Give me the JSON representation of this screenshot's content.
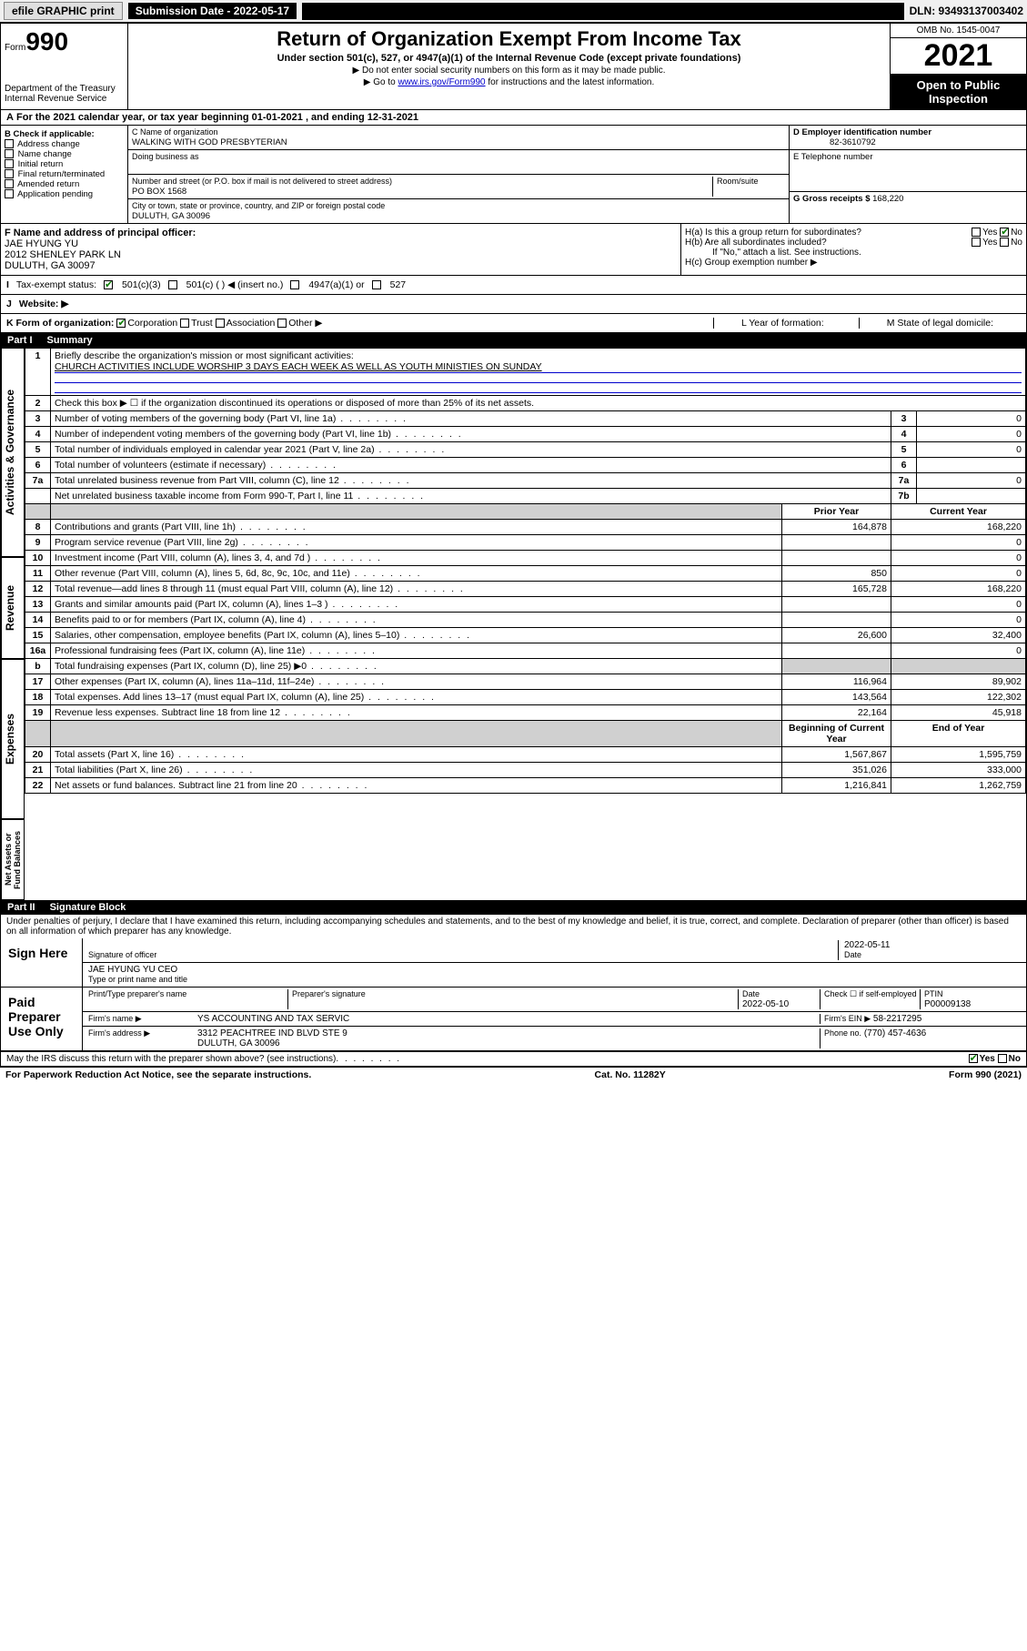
{
  "topbar": {
    "efile": "efile GRAPHIC print",
    "subdate_label": "Submission Date - 2022-05-17",
    "dln": "DLN: 93493137003402"
  },
  "header": {
    "form_label": "Form",
    "form_no": "990",
    "dept": "Department of the Treasury",
    "irs": "Internal Revenue Service",
    "title": "Return of Organization Exempt From Income Tax",
    "subtitle": "Under section 501(c), 527, or 4947(a)(1) of the Internal Revenue Code (except private foundations)",
    "note1": "▶ Do not enter social security numbers on this form as it may be made public.",
    "note2_pre": "▶ Go to ",
    "note2_link": "www.irs.gov/Form990",
    "note2_post": " for instructions and the latest information.",
    "omb": "OMB No. 1545-0047",
    "year": "2021",
    "open": "Open to Public Inspection"
  },
  "A": {
    "text": "For the 2021 calendar year, or tax year beginning 01-01-2021  , and ending 12-31-2021"
  },
  "B": {
    "label": "B Check if applicable:",
    "items": [
      "Address change",
      "Name change",
      "Initial return",
      "Final return/terminated",
      "Amended return",
      "Application pending"
    ]
  },
  "C": {
    "name_label": "C Name of organization",
    "name": "WALKING WITH GOD PRESBYTERIAN",
    "dba_label": "Doing business as",
    "addr_label": "Number and street (or P.O. box if mail is not delivered to street address)",
    "room_label": "Room/suite",
    "addr": "PO BOX 1568",
    "city_label": "City or town, state or province, country, and ZIP or foreign postal code",
    "city": "DULUTH, GA  30096"
  },
  "D": {
    "label": "D Employer identification number",
    "value": "82-3610792"
  },
  "E": {
    "label": "E Telephone number",
    "value": ""
  },
  "G": {
    "label": "G Gross receipts $",
    "value": "168,220"
  },
  "F": {
    "label": "F  Name and address of principal officer:",
    "name": "JAE HYUNG YU",
    "addr1": "2012 SHENLEY PARK LN",
    "addr2": "DULUTH, GA  30097"
  },
  "H": {
    "a": "H(a)  Is this a group return for subordinates?",
    "a_yes": "Yes",
    "a_no": "No",
    "b": "H(b)  Are all subordinates included?",
    "b_yes": "Yes",
    "b_no": "No",
    "b_note": "If \"No,\" attach a list. See instructions.",
    "c": "H(c)  Group exemption number ▶"
  },
  "I": {
    "label": "Tax-exempt status:",
    "opts": [
      "501(c)(3)",
      "501(c) (  ) ◀ (insert no.)",
      "4947(a)(1) or",
      "527"
    ]
  },
  "J": {
    "label": "Website: ▶"
  },
  "K": {
    "label": "K Form of organization:",
    "opts": [
      "Corporation",
      "Trust",
      "Association",
      "Other ▶"
    ]
  },
  "L": {
    "label": "L Year of formation:"
  },
  "M": {
    "label": "M State of legal domicile:"
  },
  "parts": {
    "p1": "Part I",
    "p1t": "Summary",
    "p2": "Part II",
    "p2t": "Signature Block"
  },
  "summary": {
    "q1_label": "Briefly describe the organization's mission or most significant activities:",
    "q1_text": "CHURCH ACTIVITIES INCLUDE WORSHIP 3 DAYS EACH WEEK AS WELL AS YOUTH MINISTIES ON SUNDAY",
    "q2": "Check this box ▶ ☐  if the organization discontinued its operations or disposed of more than 25% of its net assets.",
    "sections": {
      "gov": "Activities & Governance",
      "rev": "Revenue",
      "exp": "Expenses",
      "net": "Net Assets or Fund Balances"
    },
    "col_prior": "Prior Year",
    "col_current": "Current Year",
    "col_boy": "Beginning of Current Year",
    "col_eoy": "End of Year",
    "rows_gov": [
      {
        "n": "3",
        "t": "Number of voting members of the governing body (Part VI, line 1a)",
        "c": "3",
        "v": "0"
      },
      {
        "n": "4",
        "t": "Number of independent voting members of the governing body (Part VI, line 1b)",
        "c": "4",
        "v": "0"
      },
      {
        "n": "5",
        "t": "Total number of individuals employed in calendar year 2021 (Part V, line 2a)",
        "c": "5",
        "v": "0"
      },
      {
        "n": "6",
        "t": "Total number of volunteers (estimate if necessary)",
        "c": "6",
        "v": ""
      },
      {
        "n": "7a",
        "t": "Total unrelated business revenue from Part VIII, column (C), line 12",
        "c": "7a",
        "v": "0"
      },
      {
        "n": "",
        "t": "Net unrelated business taxable income from Form 990-T, Part I, line 11",
        "c": "7b",
        "v": ""
      }
    ],
    "rows_rev": [
      {
        "n": "8",
        "t": "Contributions and grants (Part VIII, line 1h)",
        "p": "164,878",
        "c": "168,220"
      },
      {
        "n": "9",
        "t": "Program service revenue (Part VIII, line 2g)",
        "p": "",
        "c": "0"
      },
      {
        "n": "10",
        "t": "Investment income (Part VIII, column (A), lines 3, 4, and 7d )",
        "p": "",
        "c": "0"
      },
      {
        "n": "11",
        "t": "Other revenue (Part VIII, column (A), lines 5, 6d, 8c, 9c, 10c, and 11e)",
        "p": "850",
        "c": "0"
      },
      {
        "n": "12",
        "t": "Total revenue—add lines 8 through 11 (must equal Part VIII, column (A), line 12)",
        "p": "165,728",
        "c": "168,220"
      }
    ],
    "rows_exp": [
      {
        "n": "13",
        "t": "Grants and similar amounts paid (Part IX, column (A), lines 1–3 )",
        "p": "",
        "c": "0"
      },
      {
        "n": "14",
        "t": "Benefits paid to or for members (Part IX, column (A), line 4)",
        "p": "",
        "c": "0"
      },
      {
        "n": "15",
        "t": "Salaries, other compensation, employee benefits (Part IX, column (A), lines 5–10)",
        "p": "26,600",
        "c": "32,400"
      },
      {
        "n": "16a",
        "t": "Professional fundraising fees (Part IX, column (A), line 11e)",
        "p": "",
        "c": "0"
      },
      {
        "n": "b",
        "t": "Total fundraising expenses (Part IX, column (D), line 25) ▶0",
        "p": "shade",
        "c": "shade"
      },
      {
        "n": "17",
        "t": "Other expenses (Part IX, column (A), lines 11a–11d, 11f–24e)",
        "p": "116,964",
        "c": "89,902"
      },
      {
        "n": "18",
        "t": "Total expenses. Add lines 13–17 (must equal Part IX, column (A), line 25)",
        "p": "143,564",
        "c": "122,302"
      },
      {
        "n": "19",
        "t": "Revenue less expenses. Subtract line 18 from line 12",
        "p": "22,164",
        "c": "45,918"
      }
    ],
    "rows_net": [
      {
        "n": "20",
        "t": "Total assets (Part X, line 16)",
        "p": "1,567,867",
        "c": "1,595,759"
      },
      {
        "n": "21",
        "t": "Total liabilities (Part X, line 26)",
        "p": "351,026",
        "c": "333,000"
      },
      {
        "n": "22",
        "t": "Net assets or fund balances. Subtract line 21 from line 20",
        "p": "1,216,841",
        "c": "1,262,759"
      }
    ]
  },
  "sig": {
    "penalty": "Under penalties of perjury, I declare that I have examined this return, including accompanying schedules and statements, and to the best of my knowledge and belief, it is true, correct, and complete. Declaration of preparer (other than officer) is based on all information of which preparer has any knowledge.",
    "sign_here": "Sign Here",
    "sig_officer": "Signature of officer",
    "date": "Date",
    "sig_date": "2022-05-11",
    "officer_name": "JAE HYUNG YU CEO",
    "type_name": "Type or print name and title",
    "paid": "Paid Preparer Use Only",
    "pt_name_label": "Print/Type preparer's name",
    "pt_sig_label": "Preparer's signature",
    "pt_date_label": "Date",
    "pt_date": "2022-05-10",
    "pt_check": "Check ☐ if self-employed",
    "ptin_label": "PTIN",
    "ptin": "P00009138",
    "firm_name_label": "Firm's name    ▶",
    "firm_name": "YS ACCOUNTING AND TAX SERVIC",
    "firm_ein_label": "Firm's EIN ▶",
    "firm_ein": "58-2217295",
    "firm_addr_label": "Firm's address ▶",
    "firm_addr1": "3312 PEACHTREE IND BLVD STE 9",
    "firm_addr2": "DULUTH, GA  30096",
    "phone_label": "Phone no.",
    "phone": "(770) 457-4636",
    "discuss": "May the IRS discuss this return with the preparer shown above? (see instructions)",
    "discuss_yes": "Yes",
    "discuss_no": "No"
  },
  "footer": {
    "pra": "For Paperwork Reduction Act Notice, see the separate instructions.",
    "cat": "Cat. No. 11282Y",
    "form": "Form 990 (2021)"
  }
}
